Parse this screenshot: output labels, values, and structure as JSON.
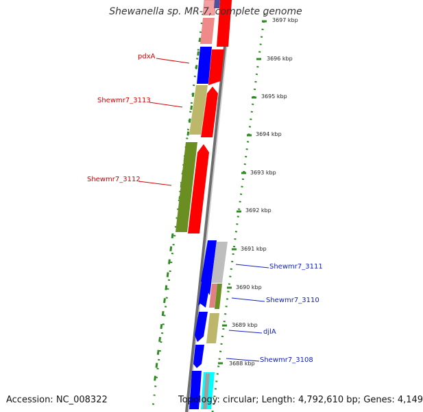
{
  "title": "Shewanella sp. MR-7, complete genome",
  "footer": {
    "accession": "Accession: NC_008322",
    "topology": "Topology: circular; Length: 4,792,610 bp; Genes: 4,149"
  },
  "ticks": [
    "3697 kbp",
    "3696 kbp",
    "3695 kbp",
    "3694 kbp",
    "3693 kbp",
    "3692 kbp",
    "3691 kbp",
    "3690 kbp",
    "3689 kbp",
    "3688 kbp"
  ],
  "genes_left": [
    {
      "name": "pdxA"
    },
    {
      "name": "Shewmr7_3113"
    },
    {
      "name": "Shewmr7_3112"
    }
  ],
  "genes_right": [
    {
      "name": "Shewmr7_3111"
    },
    {
      "name": "Shewmr7_3110"
    },
    {
      "name": "djlA"
    },
    {
      "name": "Shewmr7_3108"
    }
  ],
  "colors": {
    "forward": "#ff0000",
    "reverse": "#0000ff",
    "olive": "#6b8e23",
    "khaki": "#bdb76b",
    "gray": "#c0c0c0",
    "cyan": "#00ffff",
    "backbone": "#808080",
    "gc": "#228b22"
  }
}
